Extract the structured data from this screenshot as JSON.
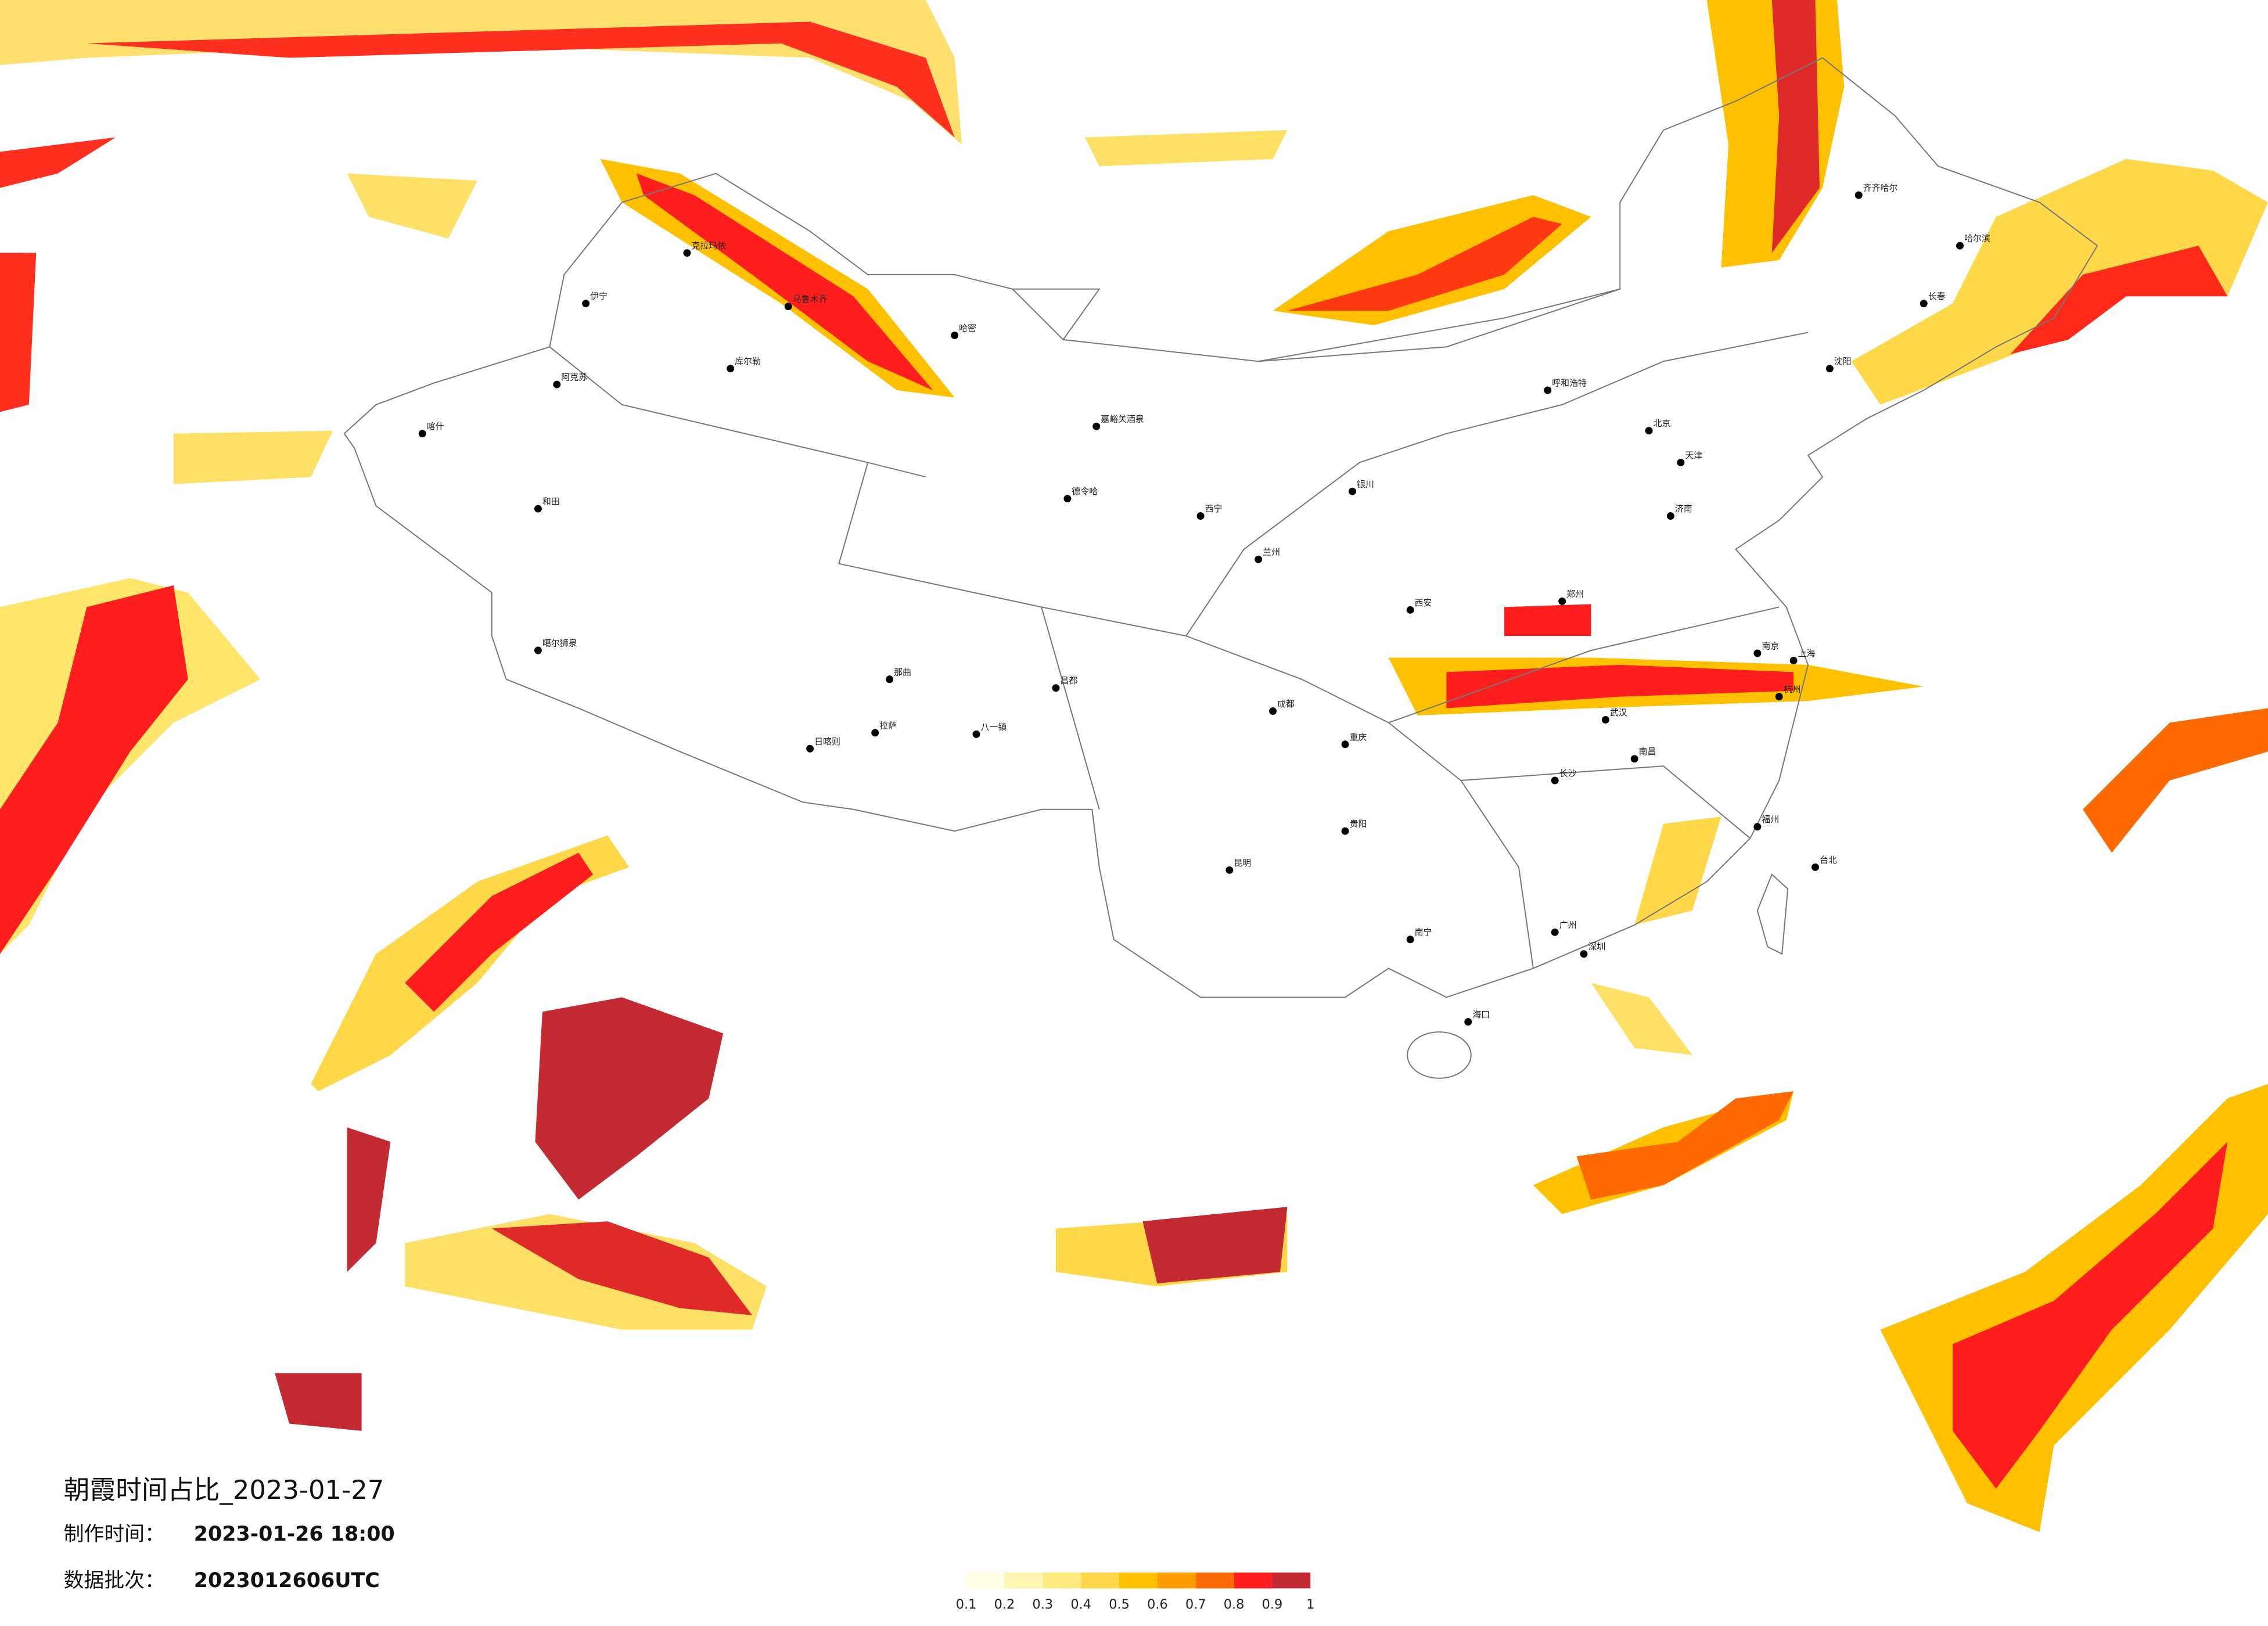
{
  "title": "朝霞时间占比_2023-01-27",
  "info": [
    {
      "label": "制作时间：",
      "value": "2023-01-26 18:00"
    },
    {
      "label": "数据批次：",
      "value": "2023012606UTC"
    }
  ],
  "legend": {
    "ticks": [
      0.1,
      0.2,
      0.3,
      0.4,
      0.5,
      0.6,
      0.7,
      0.8,
      0.9,
      1
    ],
    "colors": [
      "#fffde6",
      "#fff6b3",
      "#ffec80",
      "#ffd84a",
      "#ffc000",
      "#ff9c00",
      "#ff6a00",
      "#ff1e1e",
      "#c42a32"
    ]
  },
  "cities": [
    "伊宁",
    "克拉玛依",
    "乌鲁木齐",
    "库尔勒",
    "阿克苏",
    "喀什",
    "和田",
    "哈密",
    "嘉峪关酒泉",
    "德令哈",
    "噶尔狮泉",
    "日喀则",
    "拉萨",
    "八一镇",
    "那曲",
    "昌都",
    "西宁",
    "兰州",
    "银川",
    "呼和浩特",
    "北京",
    "天津",
    "沈阳",
    "长春",
    "哈尔滨",
    "齐齐哈尔",
    "济南",
    "郑州",
    "西安",
    "成都",
    "重庆",
    "武汉",
    "南京",
    "上海",
    "杭州",
    "长沙",
    "南昌",
    "福州",
    "贵阳",
    "昆明",
    "南宁",
    "广州",
    "深圳",
    "海口",
    "台北"
  ]
}
